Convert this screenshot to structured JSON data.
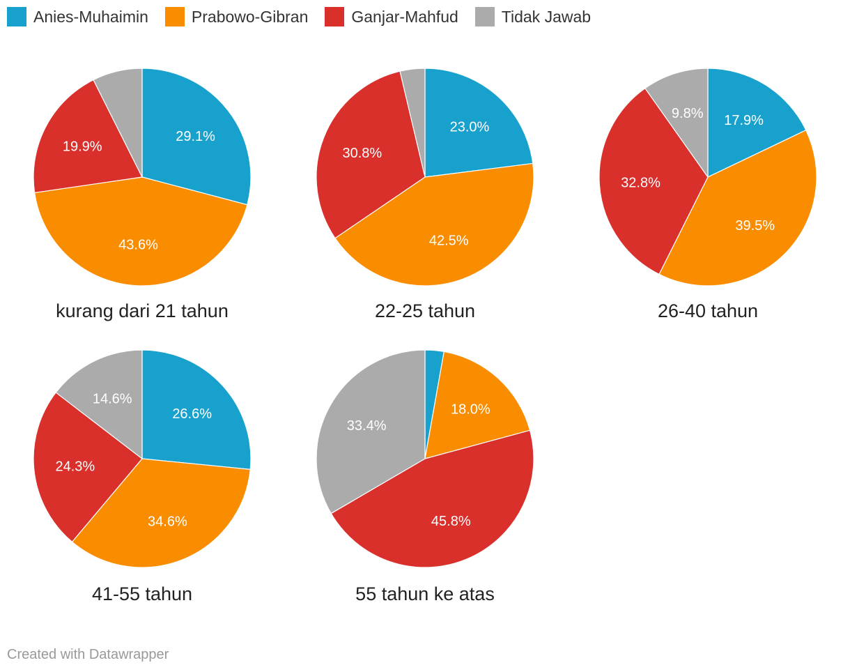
{
  "chart_data": {
    "type": "pie",
    "legend_position": "top-left",
    "series": [
      {
        "name": "Anies-Muhaimin",
        "color": "#18a1cd"
      },
      {
        "name": "Prabowo-Gibran",
        "color": "#fa8c00"
      },
      {
        "name": "Ganjar-Mahfud",
        "color": "#d9302c"
      },
      {
        "name": "Tidak Jawab",
        "color": "#ababab"
      }
    ],
    "charts": [
      {
        "title": "kurang dari 21 tahun",
        "values": [
          29.1,
          43.6,
          19.9,
          7.4
        ],
        "labels": [
          "29.1%",
          "43.6%",
          "19.9%",
          ""
        ]
      },
      {
        "title": "22-25 tahun",
        "values": [
          23.0,
          42.5,
          30.8,
          3.7
        ],
        "labels": [
          "23.0%",
          "42.5%",
          "30.8%",
          ""
        ]
      },
      {
        "title": "26-40 tahun",
        "values": [
          17.9,
          39.5,
          32.8,
          9.8
        ],
        "labels": [
          "17.9%",
          "39.5%",
          "32.8%",
          "9.8%"
        ]
      },
      {
        "title": "41-55 tahun",
        "values": [
          26.6,
          34.6,
          24.3,
          14.6
        ],
        "labels": [
          "26.6%",
          "34.6%",
          "24.3%",
          "14.6%"
        ]
      },
      {
        "title": "55 tahun ke atas",
        "values": [
          2.8,
          18.0,
          45.8,
          33.4
        ],
        "labels": [
          "",
          "18.0%",
          "45.8%",
          "33.4%"
        ]
      }
    ]
  },
  "footer": {
    "credit": "Created with Datawrapper"
  }
}
